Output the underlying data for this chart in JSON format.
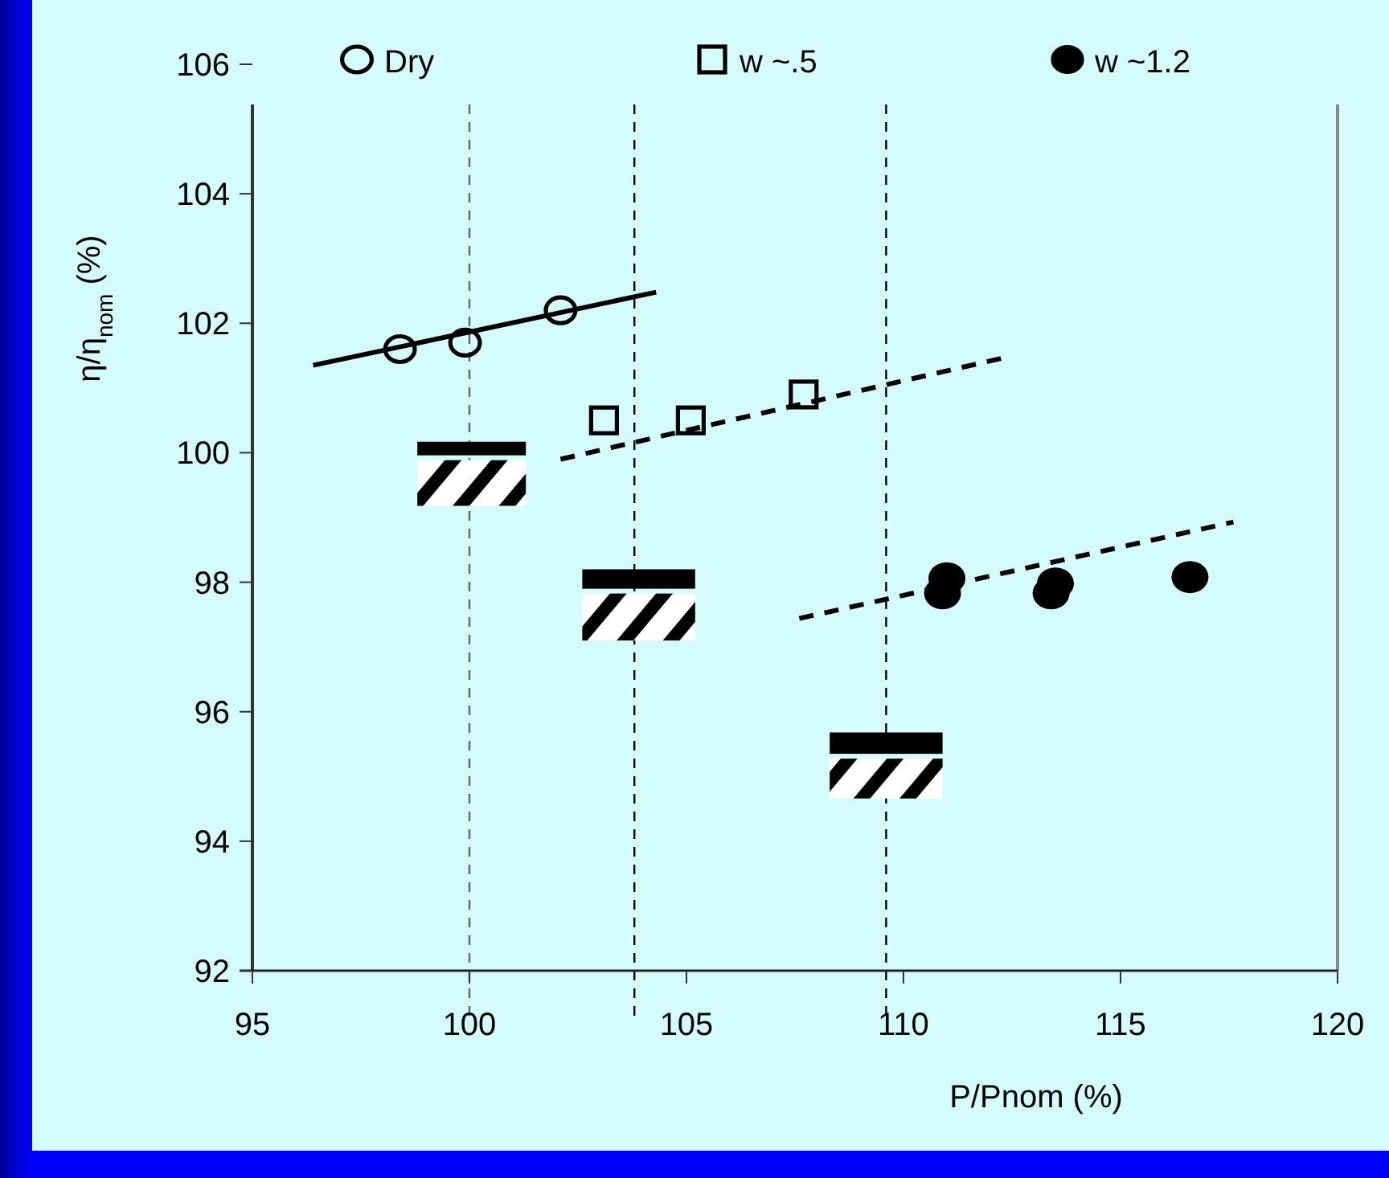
{
  "chart_data": {
    "type": "scatter",
    "xlabel": "P/Pnom (%)",
    "ylabel": "η/η$_{nom}$ (%)",
    "xlim": [
      95,
      120
    ],
    "xticks": [
      95,
      100,
      105,
      110,
      115,
      120
    ],
    "ylim": [
      92,
      106
    ],
    "yticks": [
      92,
      94,
      96,
      98,
      100,
      102,
      104,
      106
    ],
    "grid": false,
    "legend": "top",
    "series": [
      {
        "name": "Dry",
        "marker": "circle-open",
        "color": "#000000",
        "x": [
          98.4,
          99.9,
          102.1
        ],
        "values": [
          101.6,
          101.7,
          102.2
        ]
      },
      {
        "name": "w ~.5",
        "marker": "square-open",
        "color": "#000000",
        "x": [
          103.1,
          105.1,
          107.7
        ],
        "values": [
          100.5,
          100.5,
          100.9
        ]
      },
      {
        "name": "w ~1.2",
        "marker": "circle",
        "color": "#000000",
        "x": [
          111.0,
          110.9,
          113.5,
          113.4,
          116.6
        ],
        "values": [
          98.06,
          97.83,
          97.98,
          97.83,
          98.08
        ]
      },
      {
        "type": "line",
        "line_style": "solid",
        "color": "#000000",
        "x": [
          96.4,
          104.3
        ],
        "values": [
          101.35,
          102.48
        ]
      },
      {
        "type": "line",
        "line_style": "dashed",
        "color": "#000000",
        "x": [
          102.1,
          112.4
        ],
        "values": [
          99.9,
          101.48
        ]
      },
      {
        "type": "line",
        "line_style": "dashed",
        "color": "#000000",
        "x": [
          107.6,
          117.6
        ],
        "values": [
          97.44,
          98.93
        ]
      }
    ],
    "ref_lines": [
      {
        "axis": "x",
        "value": 100,
        "color": "#666666",
        "line_style": "dashed"
      },
      {
        "axis": "x",
        "value": 103.8,
        "color": "#000000",
        "line_style": "dashed"
      },
      {
        "axis": "x",
        "value": 109.6,
        "color": "#000000",
        "line_style": "dashed"
      }
    ]
  }
}
